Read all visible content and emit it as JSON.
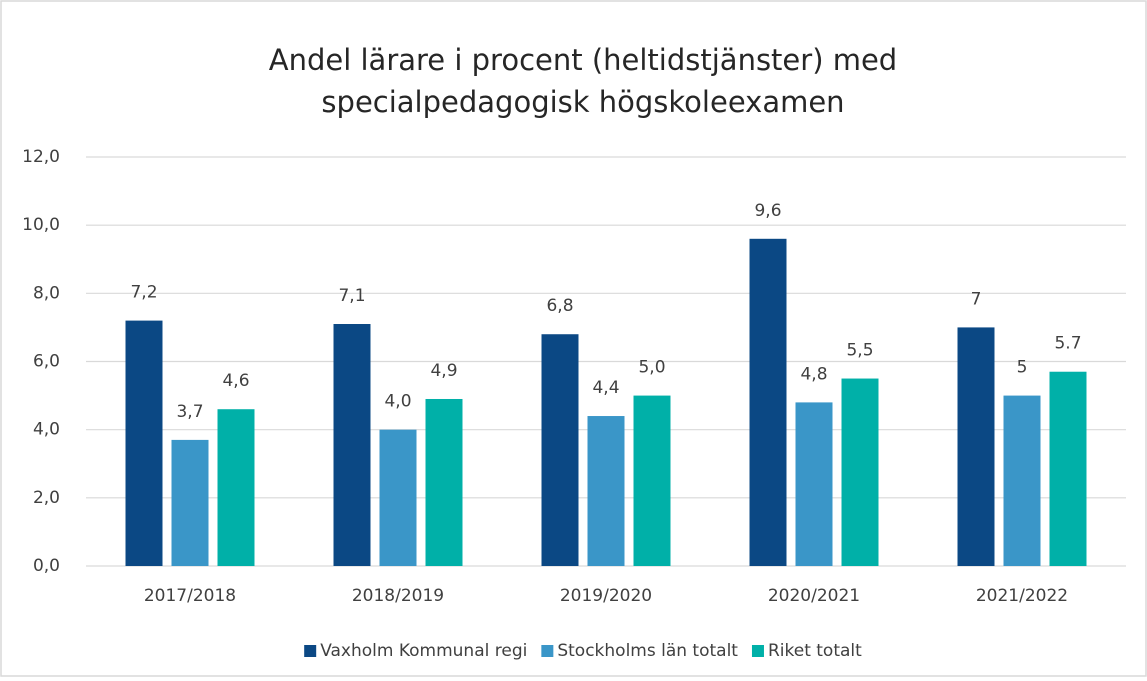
{
  "chart_data": {
    "type": "bar",
    "title": [
      "Andel lärare i procent (heltidstjänster) med",
      "specialpedagogisk högskoleexamen"
    ],
    "categories": [
      "2017/2018",
      "2018/2019",
      "2019/2020",
      "2020/2021",
      "2021/2022"
    ],
    "series": [
      {
        "name": "Vaxholm Kommunal regi",
        "color": "#0b4884",
        "values": [
          7.2,
          7.1,
          6.8,
          9.6,
          7
        ],
        "value_labels": [
          "7,2",
          "7,1",
          "6,8",
          "9,6",
          "7"
        ]
      },
      {
        "name": "Stockholms län totalt",
        "color": "#3a96c8",
        "values": [
          3.7,
          4.0,
          4.4,
          4.8,
          5
        ],
        "value_labels": [
          "3,7",
          "4,0",
          "4,4",
          "4,8",
          "5"
        ]
      },
      {
        "name": "Riket totalt",
        "color": "#00b0a8",
        "values": [
          4.6,
          4.9,
          5.0,
          5.5,
          5.7
        ],
        "value_labels": [
          "4,6",
          "4,9",
          "5,0",
          "5,5",
          "5.7"
        ]
      }
    ],
    "ylim": [
      0,
      12
    ],
    "yticks": [
      {
        "value": 0,
        "label": "0,0"
      },
      {
        "value": 2,
        "label": "2,0"
      },
      {
        "value": 4,
        "label": "4,0"
      },
      {
        "value": 6,
        "label": "6,0"
      },
      {
        "value": 8,
        "label": "8,0"
      },
      {
        "value": 10,
        "label": "10,0"
      },
      {
        "value": 12,
        "label": "12,0"
      }
    ],
    "grid": true,
    "legend": "bottom"
  }
}
